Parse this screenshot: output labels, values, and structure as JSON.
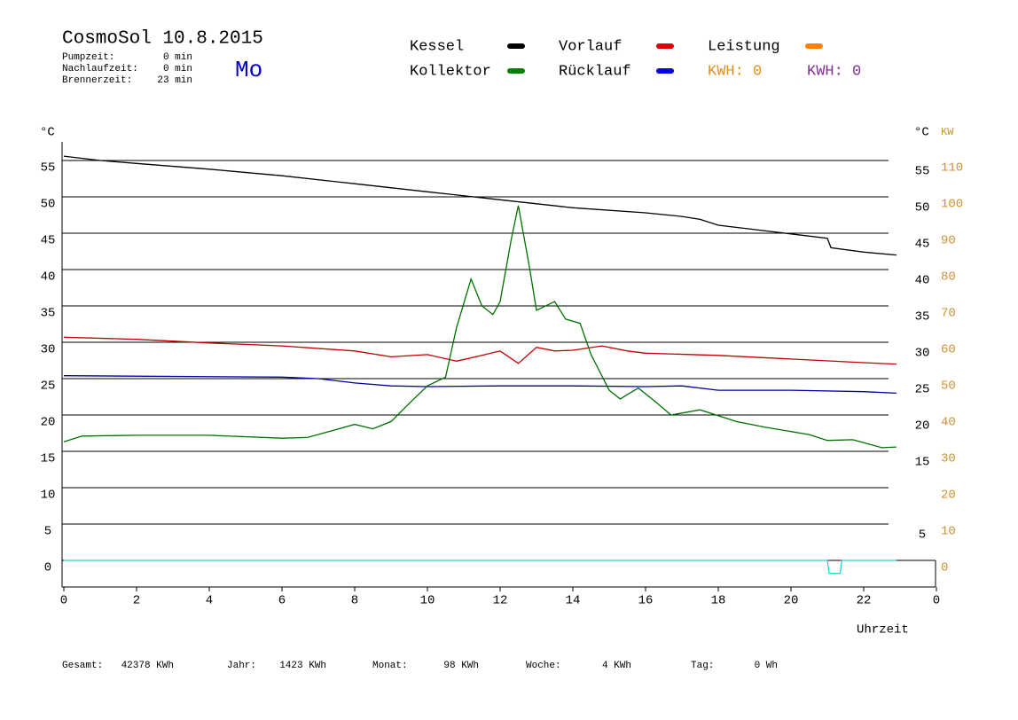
{
  "chart_data": {
    "type": "line",
    "title": "CosmoSol 10.8.2015",
    "day": "Mo",
    "info": [
      {
        "label": "Pumpzeit:",
        "value": "0 min"
      },
      {
        "label": "Nachlaufzeit:",
        "value": "0 min"
      },
      {
        "label": "Brennerzeit:",
        "value": "23 min"
      }
    ],
    "legend": [
      {
        "name": "Kessel",
        "color": "#000000"
      },
      {
        "name": "Kollektor",
        "color": "#008000"
      },
      {
        "name": "Vorlauf",
        "color": "#e00000"
      },
      {
        "name": "Rücklauf",
        "color": "#0000e0"
      },
      {
        "name": "Leistung",
        "color": "#ff8000"
      }
    ],
    "kwh": [
      {
        "text": "KWH: 0",
        "color": "#e09020"
      },
      {
        "text": "KWH: 0",
        "color": "#803090"
      }
    ],
    "y_label": "°C",
    "y2_label_c": "°C",
    "y2_label": "KW",
    "x_label": "Uhrzeit",
    "xlim": [
      0,
      24
    ],
    "xticks": [
      0,
      2,
      4,
      6,
      8,
      10,
      12,
      14,
      16,
      18,
      20,
      22,
      {
        "value": 24,
        "label": "0"
      }
    ],
    "ylim": [
      -3.66,
      57.56
    ],
    "yticks": [
      0,
      5,
      10,
      15,
      20,
      25,
      30,
      35,
      40,
      45,
      50,
      55
    ],
    "yticks_right": [
      5,
      15,
      20,
      25,
      30,
      35,
      40,
      45,
      50,
      55
    ],
    "y2lim": [
      -7.32,
      115.12
    ],
    "y2ticks": [
      0,
      10,
      20,
      30,
      40,
      50,
      60,
      70,
      80,
      90,
      100,
      110
    ],
    "grid": true,
    "series": [
      {
        "name": "Kessel",
        "color": "#000000",
        "x": [
          0,
          1,
          2,
          4,
          6,
          8,
          10,
          12,
          14,
          16,
          17,
          17.5,
          18,
          19,
          20,
          21,
          21.1,
          22,
          22.9
        ],
        "values": [
          55.6,
          55,
          54.6,
          53.8,
          52.9,
          51.8,
          50.7,
          49.6,
          48.5,
          47.8,
          47.3,
          46.9,
          46.1,
          45.5,
          44.9,
          44.3,
          43,
          42.4,
          42
        ]
      },
      {
        "name": "Vorlauf",
        "color": "#c00000",
        "x": [
          0,
          2,
          4,
          6,
          8,
          9,
          10,
          10.8,
          11.5,
          12,
          12.5,
          13,
          13.5,
          14,
          14.8,
          15.5,
          16,
          18,
          20,
          22,
          22.9
        ],
        "values": [
          30.7,
          30.4,
          29.9,
          29.5,
          28.8,
          28,
          28.3,
          27.4,
          28.2,
          28.8,
          27.1,
          29.3,
          28.8,
          28.9,
          29.5,
          28.8,
          28.5,
          28.2,
          27.7,
          27.2,
          27
        ]
      },
      {
        "name": "Rücklauf",
        "color": "#0000a0",
        "x": [
          0,
          6,
          7,
          8,
          9,
          10,
          12,
          14,
          16,
          17,
          18,
          20,
          22,
          22.9
        ],
        "values": [
          25.4,
          25.2,
          25,
          24.4,
          24,
          23.9,
          24,
          24,
          23.9,
          24,
          23.4,
          23.4,
          23.2,
          23
        ]
      },
      {
        "name": "Kollektor",
        "color": "#007000",
        "x": [
          0,
          0.5,
          2,
          4,
          6,
          6.7,
          7.5,
          8,
          8.5,
          9,
          9.5,
          10,
          10.5,
          10.8,
          11.2,
          11.5,
          11.8,
          12,
          12.3,
          12.5,
          12.8,
          13,
          13.5,
          13.8,
          14.2,
          14.5,
          15,
          15.3,
          15.8,
          16.3,
          16.7,
          17.5,
          18.5,
          19.3,
          20.5,
          21,
          21.7,
          22.5,
          22.9
        ],
        "values": [
          16.3,
          17.1,
          17.2,
          17.2,
          16.8,
          16.9,
          18,
          18.7,
          18.1,
          19.1,
          21.6,
          24,
          25.2,
          32,
          38.7,
          35,
          33.8,
          35.6,
          44,
          48.8,
          40.5,
          34.4,
          35.6,
          33.2,
          32.6,
          28.3,
          23.4,
          22.2,
          23.7,
          21.7,
          20,
          20.7,
          19.1,
          18.3,
          17.3,
          16.5,
          16.6,
          15.5,
          15.6
        ]
      },
      {
        "color": "#20d8d8",
        "x": [
          0,
          21,
          21.05,
          21.35,
          21.4,
          22.9
        ],
        "values": [
          0,
          0,
          -1.8,
          -1.8,
          0,
          0
        ]
      }
    ],
    "footer": [
      {
        "label": "Gesamt:",
        "value": "42378 KWh"
      },
      {
        "label": "Jahr:",
        "value": "1423 KWh"
      },
      {
        "label": "Monat:",
        "value": "98 KWh"
      },
      {
        "label": "Woche:",
        "value": "4 KWh"
      },
      {
        "label": "Tag:",
        "value": "0 Wh"
      }
    ]
  }
}
